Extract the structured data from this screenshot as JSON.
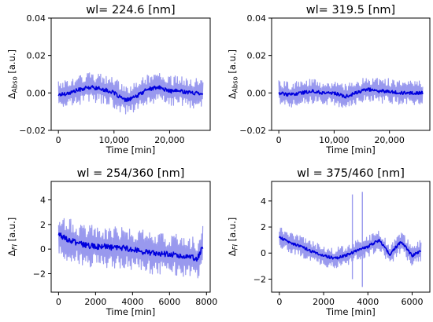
{
  "chart_data": [
    {
      "type": "line",
      "title": "wl= 224.6 [nm]",
      "xlabel": "Time [min]",
      "ylabel": "ΔAbso [a.u.]",
      "ylabel_main": "Δ",
      "ylabel_sub": "Abso",
      "ylabel_unit": " [a.u.]",
      "xlim": [
        -1300,
        27300
      ],
      "ylim": [
        -0.02,
        0.04
      ],
      "xticks": [
        0,
        10000,
        20000
      ],
      "xticklabels": [
        "0",
        "10,000",
        "20,000"
      ],
      "yticks": [
        -0.02,
        0.0,
        0.02,
        0.04
      ],
      "yticklabels": [
        "−0.02",
        "0.00",
        "0.02",
        "0.04"
      ],
      "grid": false,
      "colors": {
        "mean": "#0000dd",
        "band": "#9999ee"
      },
      "band_halfwidth_estimate": 0.006,
      "series": [
        {
          "x": [
            0,
            2000,
            4000,
            6000,
            8000,
            10000,
            12000,
            14000,
            16000,
            18000,
            20000,
            22000,
            24000,
            26000
          ],
          "values": [
            -0.001,
            0.0,
            0.002,
            0.003,
            0.002,
            0.0,
            -0.004,
            -0.002,
            0.002,
            0.003,
            0.001,
            0.001,
            0.0,
            0.0
          ]
        }
      ]
    },
    {
      "type": "line",
      "title": "wl= 319.5 [nm]",
      "xlabel": "Time [min]",
      "ylabel": "ΔAbso [a.u.]",
      "ylabel_main": "Δ",
      "ylabel_sub": "Abso",
      "ylabel_unit": " [a.u.]",
      "xlim": [
        -1300,
        27300
      ],
      "ylim": [
        -0.02,
        0.04
      ],
      "xticks": [
        0,
        10000,
        20000
      ],
      "xticklabels": [
        "0",
        "10,000",
        "20,000"
      ],
      "yticks": [
        -0.02,
        0.0,
        0.02,
        0.04
      ],
      "yticklabels": [
        "−0.02",
        "0.00",
        "0.02",
        "0.04"
      ],
      "grid": false,
      "colors": {
        "mean": "#0000dd",
        "band": "#9999ee"
      },
      "band_halfwidth_estimate": 0.005,
      "series": [
        {
          "x": [
            0,
            2000,
            4000,
            6000,
            8000,
            10000,
            12000,
            14000,
            16000,
            18000,
            20000,
            22000,
            24000,
            26000
          ],
          "values": [
            0.0,
            -0.001,
            0.0,
            0.001,
            0.0,
            0.0,
            -0.002,
            0.0,
            0.002,
            0.001,
            0.001,
            0.0,
            0.0,
            0.0
          ]
        }
      ]
    },
    {
      "type": "line",
      "title": "wl = 254/360 [nm]",
      "xlabel": "Time [min]",
      "ylabel": "ΔFI [a.u.]",
      "ylabel_main": "Δ",
      "ylabel_sub": "FI",
      "ylabel_unit": " [a.u.]",
      "xlim": [
        -400,
        8200
      ],
      "ylim": [
        -3.5,
        5.5
      ],
      "xticks": [
        0,
        2000,
        4000,
        6000,
        8000
      ],
      "xticklabels": [
        "0",
        "2000",
        "4000",
        "6000",
        "8000"
      ],
      "yticks": [
        -2,
        0,
        2,
        4
      ],
      "yticklabels": [
        "−2",
        "0",
        "2",
        "4"
      ],
      "grid": false,
      "colors": {
        "mean": "#0000dd",
        "band": "#9999ee"
      },
      "band_halfwidth_estimate": 1.3,
      "series": [
        {
          "x": [
            0,
            500,
            1000,
            1500,
            2000,
            2500,
            3000,
            3500,
            4000,
            4500,
            5000,
            5500,
            6000,
            6500,
            7000,
            7500,
            7800
          ],
          "values": [
            1.2,
            0.8,
            0.5,
            0.3,
            0.2,
            0.2,
            0.1,
            0.1,
            0.0,
            -0.2,
            -0.3,
            -0.4,
            -0.4,
            -0.5,
            -0.6,
            -0.8,
            0.2
          ]
        }
      ]
    },
    {
      "type": "line",
      "title": "wl = 375/460 [nm]",
      "xlabel": "Time [min]",
      "ylabel": "ΔFI [a.u.]",
      "ylabel_main": "Δ",
      "ylabel_sub": "FI",
      "ylabel_unit": " [a.u.]",
      "xlim": [
        -350,
        6800
      ],
      "ylim": [
        -3.0,
        5.5
      ],
      "xticks": [
        0,
        2000,
        4000,
        6000
      ],
      "xticklabels": [
        "0",
        "2000",
        "4000",
        "6000"
      ],
      "yticks": [
        -2,
        0,
        2,
        4
      ],
      "yticklabels": [
        "−2",
        "0",
        "2",
        "4"
      ],
      "grid": false,
      "colors": {
        "mean": "#0000dd",
        "band": "#9999ee"
      },
      "band_halfwidth_estimate": 0.6,
      "spikes": [
        {
          "x": 3300,
          "values": [
            4.5,
            -2.0
          ]
        },
        {
          "x": 3750,
          "values": [
            4.7,
            -2.6
          ]
        }
      ],
      "series": [
        {
          "x": [
            0,
            500,
            1000,
            1500,
            2000,
            2500,
            3000,
            3500,
            4000,
            4500,
            5000,
            5500,
            6000,
            6400
          ],
          "values": [
            1.2,
            0.8,
            0.5,
            0.1,
            -0.2,
            -0.4,
            -0.2,
            0.2,
            0.5,
            1.0,
            -0.1,
            0.9,
            -0.2,
            0.2
          ]
        }
      ]
    }
  ]
}
